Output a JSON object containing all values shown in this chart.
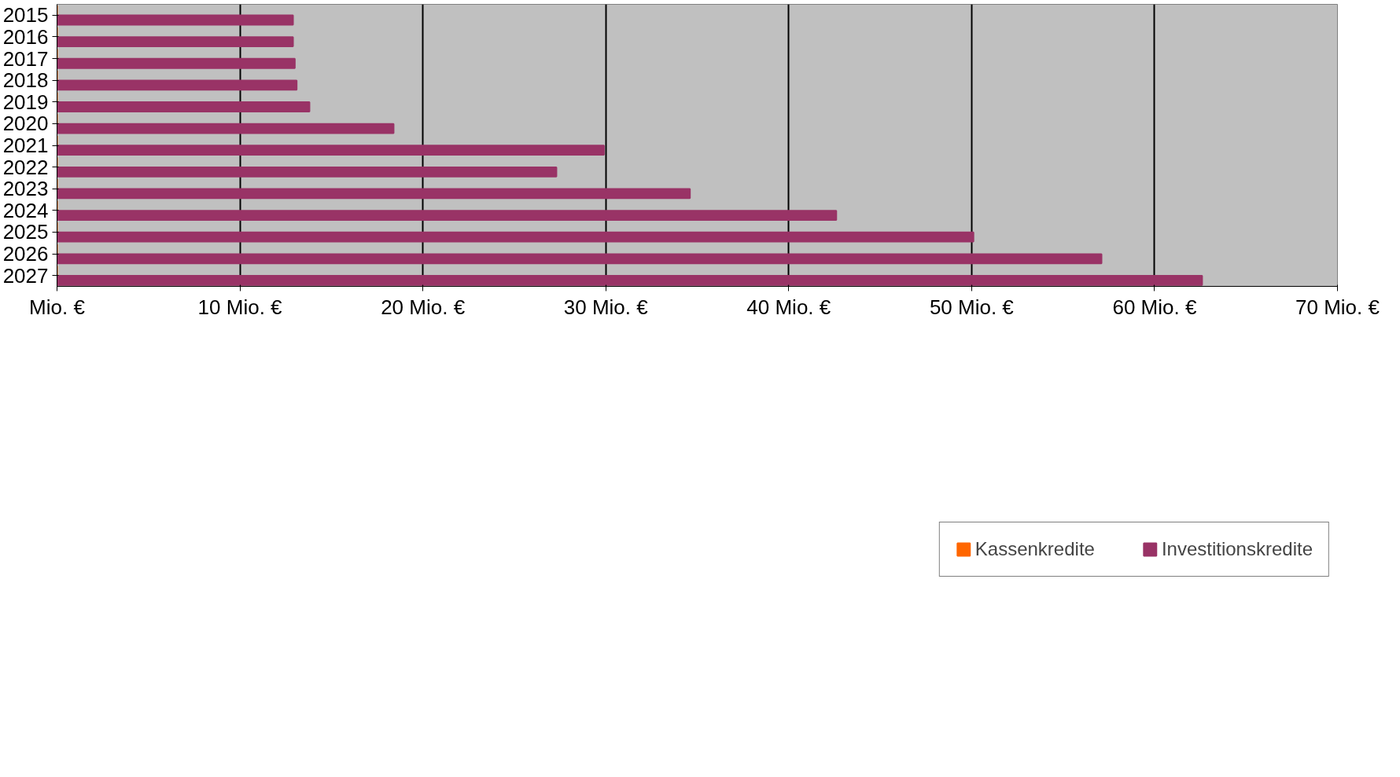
{
  "chart_data": {
    "type": "bar",
    "orientation": "horizontal",
    "categories": [
      "2015",
      "2016",
      "2017",
      "2018",
      "2019",
      "2020",
      "2021",
      "2022",
      "2023",
      "2024",
      "2025",
      "2026",
      "2027"
    ],
    "series": [
      {
        "name": "Kassenkredite",
        "color": "#ff6600",
        "values": [
          0,
          0,
          0,
          0,
          0,
          0,
          0,
          0,
          0,
          0,
          0,
          0,
          0
        ]
      },
      {
        "name": "Investitionskredite",
        "color": "#993366",
        "values": [
          12.9,
          12.9,
          13.0,
          13.1,
          13.8,
          18.4,
          29.9,
          27.3,
          34.6,
          42.6,
          50.1,
          57.1,
          62.6
        ]
      }
    ],
    "xlim": [
      0,
      70
    ],
    "xticks": [
      {
        "value": 0,
        "label": "Mio. €"
      },
      {
        "value": 10,
        "label": "10 Mio. €"
      },
      {
        "value": 20,
        "label": "20 Mio. €"
      },
      {
        "value": 30,
        "label": "30 Mio. €"
      },
      {
        "value": 40,
        "label": "40 Mio. €"
      },
      {
        "value": 50,
        "label": "50 Mio. €"
      },
      {
        "value": 60,
        "label": "60 Mio. €"
      },
      {
        "value": 70,
        "label": "70 Mio. €"
      }
    ],
    "grid": "x",
    "legend": "bottom"
  }
}
